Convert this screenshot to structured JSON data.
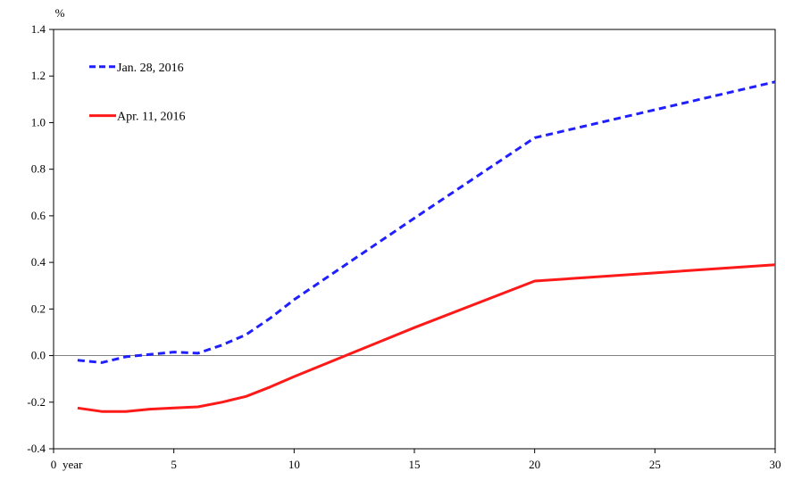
{
  "chart_data": {
    "type": "line",
    "title": "",
    "ylabel": "%",
    "xlabel": "year",
    "xlim": [
      0,
      30
    ],
    "ylim": [
      -0.4,
      1.4
    ],
    "x_ticks": [
      0,
      5,
      10,
      15,
      20,
      25,
      30
    ],
    "x_tick_labels": [
      "0",
      "5",
      "10",
      "15",
      "20",
      "25",
      "30"
    ],
    "y_ticks": [
      -0.4,
      -0.2,
      0.0,
      0.2,
      0.4,
      0.6,
      0.8,
      1.0,
      1.2,
      1.4
    ],
    "y_tick_labels": [
      "-0.4",
      "-0.2",
      "0.0",
      "0.2",
      "0.4",
      "0.6",
      "0.8",
      "1.0",
      "1.2",
      "1.4"
    ],
    "grid": false,
    "zero_line": true,
    "legend_position": "top-left",
    "series": [
      {
        "name": "Jan. 28, 2016",
        "color": "#1f1fff",
        "style": "dashed",
        "x": [
          1,
          2,
          3,
          4,
          5,
          6,
          7,
          8,
          9,
          10,
          15,
          20,
          30
        ],
        "y": [
          -0.02,
          -0.03,
          -0.005,
          0.005,
          0.015,
          0.01,
          0.045,
          0.09,
          0.16,
          0.24,
          0.59,
          0.935,
          1.175
        ]
      },
      {
        "name": "Apr. 11, 2016",
        "color": "#ff1a1a",
        "style": "solid",
        "x": [
          1,
          2,
          3,
          4,
          5,
          6,
          7,
          8,
          9,
          10,
          15,
          20,
          30
        ],
        "y": [
          -0.225,
          -0.24,
          -0.24,
          -0.23,
          -0.225,
          -0.22,
          -0.2,
          -0.175,
          -0.135,
          -0.09,
          0.12,
          0.32,
          0.39
        ]
      }
    ]
  }
}
